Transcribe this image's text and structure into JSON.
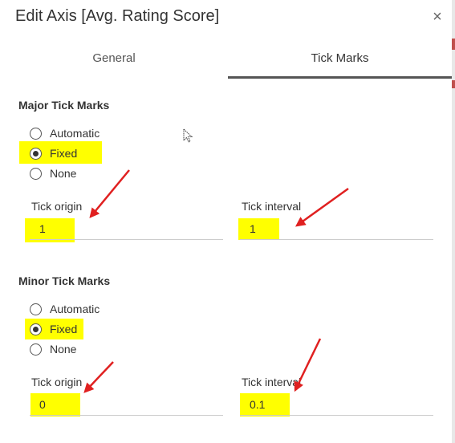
{
  "dialog": {
    "title": "Edit Axis [Avg. Rating Score]",
    "close_glyph": "×"
  },
  "tabs": [
    {
      "label": "General",
      "active": false
    },
    {
      "label": "Tick Marks",
      "active": true
    }
  ],
  "major": {
    "title": "Major Tick Marks",
    "options": [
      "Automatic",
      "Fixed",
      "None"
    ],
    "selected": "Fixed",
    "tick_origin_label": "Tick origin",
    "tick_origin_value": "1",
    "tick_interval_label": "Tick interval",
    "tick_interval_value": "1"
  },
  "minor": {
    "title": "Minor Tick Marks",
    "options": [
      "Automatic",
      "Fixed",
      "None"
    ],
    "selected": "Fixed",
    "tick_origin_label": "Tick origin",
    "tick_origin_value": "0",
    "tick_interval_label": "Tick interval",
    "tick_interval_value": "0.1"
  },
  "colors": {
    "highlight": "#ffff00",
    "annotation_arrow": "#e02020",
    "tab_underline": "#555555"
  },
  "icons": {
    "close": "close-icon",
    "cursor": "mouse-cursor-icon",
    "arrow": "red-arrow-annotation"
  }
}
